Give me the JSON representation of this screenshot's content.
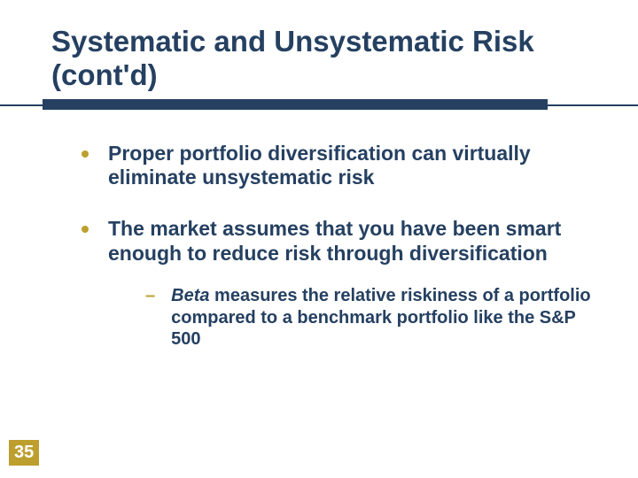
{
  "title": "Systematic and Unsystematic Risk (cont'd)",
  "bullets": [
    {
      "text": "Proper portfolio diversification can virtually eliminate unsystematic risk"
    },
    {
      "text": "The market assumes that you have been smart enough to reduce risk through diversification"
    }
  ],
  "subbullets": [
    {
      "emph": "Beta",
      "rest": " measures the relative riskiness of a portfolio compared to a benchmark portfolio like the S&P 500"
    }
  ],
  "page_number": "35",
  "colors": {
    "heading": "#254061",
    "accent": "#bd9f2e",
    "background": "#ffffff"
  },
  "typography": {
    "title_fontsize": 33,
    "bullet_fontsize": 23,
    "sub_fontsize": 20,
    "font_family": "Arial",
    "font_weight": "bold"
  },
  "layout": {
    "underline_thick_width": 570,
    "underline_thick_height": 12,
    "underline_thin_height": 2
  }
}
